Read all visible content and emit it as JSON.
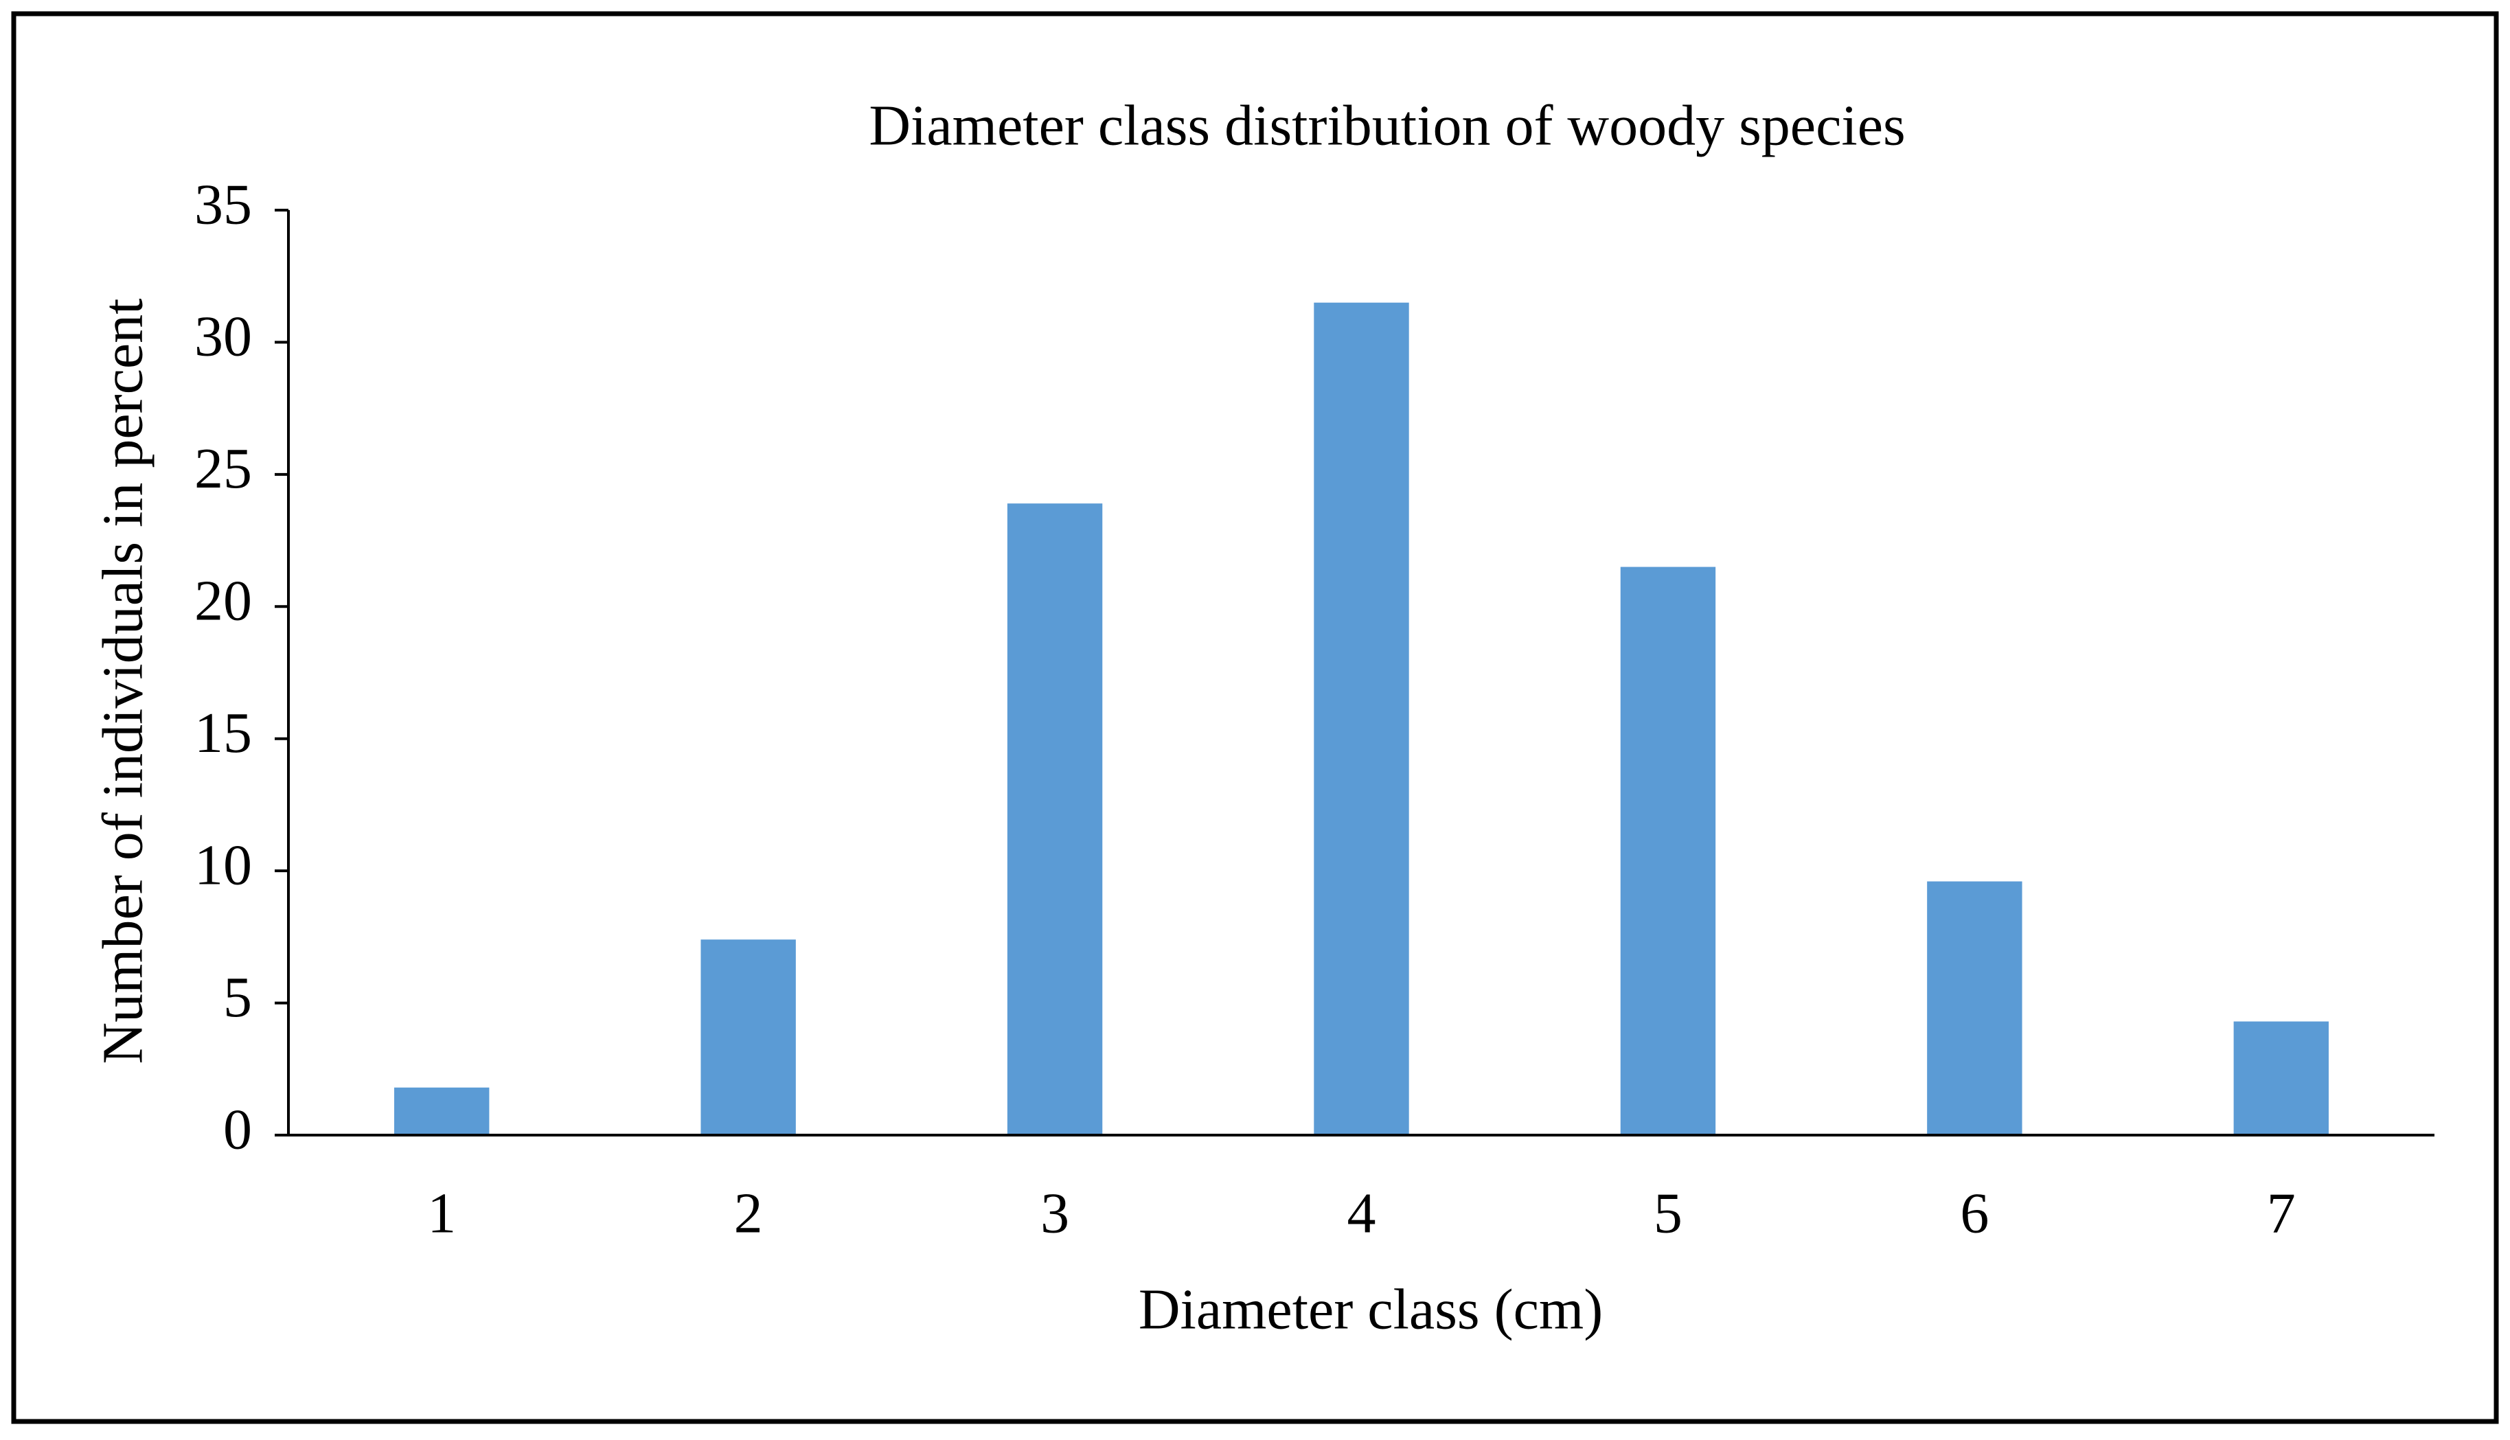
{
  "chart_data": {
    "type": "bar",
    "title": "Diameter class distribution of woody species",
    "x_label": "Diameter class (cm)",
    "y_label": "Number of individuals in percent",
    "categories": [
      "1",
      "2",
      "3",
      "4",
      "5",
      "6",
      "7"
    ],
    "values": [
      1.8,
      7.4,
      23.9,
      31.5,
      21.5,
      9.6,
      4.3
    ],
    "color": "#5b9bd5",
    "ylim": [
      0,
      35
    ],
    "yticks": [
      0,
      5,
      10,
      15,
      20,
      25,
      30,
      35
    ],
    "grid": false
  }
}
